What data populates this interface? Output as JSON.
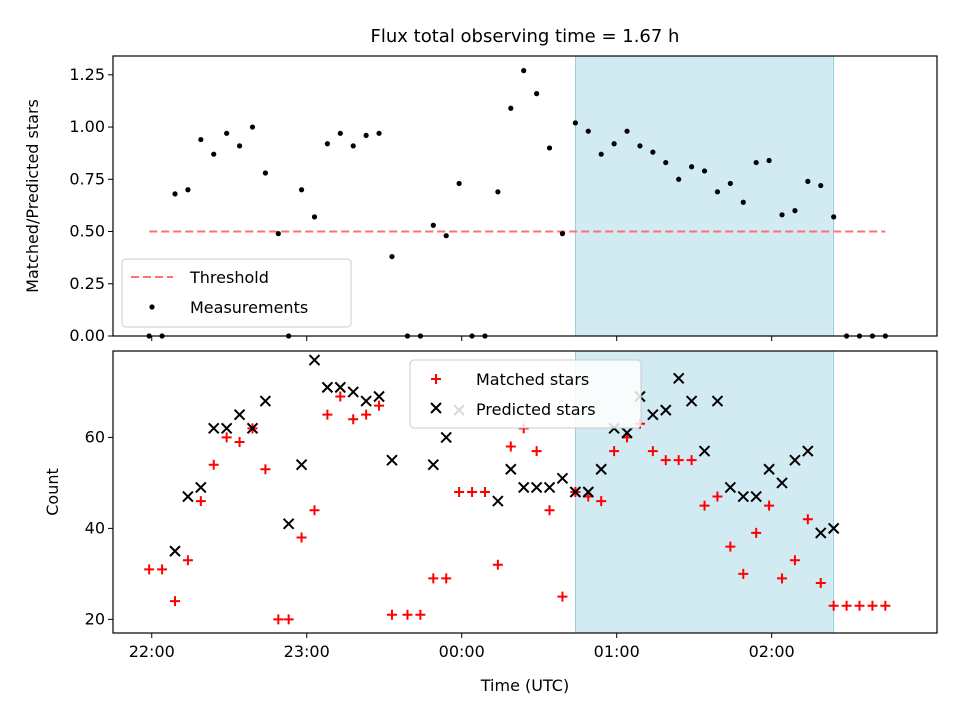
{
  "title": "Flux total observing time = 1.67 h",
  "colors": {
    "window": "#add8e6",
    "threshold": "#ff7070",
    "measurements": "#000000",
    "matched": "#ff0000",
    "predicted": "#000000"
  },
  "chart_data": [
    {
      "type": "scatter",
      "ylabel": "Matched/Predicted stars",
      "ylim": [
        0,
        1.34
      ],
      "yticks": [
        0,
        0.25,
        0.5,
        0.75,
        1.0,
        1.25
      ],
      "ytick_labels": [
        "0.00",
        "0.25",
        "0.50",
        "0.75",
        "1.00",
        "1.25"
      ],
      "xlim": [
        "21:45",
        "03:04"
      ],
      "xticks": [
        "22:00",
        "23:00",
        "00:00",
        "01:00",
        "02:00"
      ],
      "highlight": {
        "start": "00:44",
        "end": "02:24"
      },
      "legend": {
        "placement": "lower-left",
        "entries": [
          "Threshold",
          "Measurements"
        ]
      },
      "series": [
        {
          "name": "Threshold",
          "style": "dashed-line",
          "x": [
            "21:59",
            "02:44"
          ],
          "y": [
            0.5,
            0.5
          ]
        },
        {
          "name": "Measurements",
          "style": "dot",
          "x": [
            "21:59",
            "22:04",
            "22:09",
            "22:14",
            "22:19",
            "22:24",
            "22:29",
            "22:34",
            "22:39",
            "22:44",
            "22:49",
            "22:53",
            "22:58",
            "23:03",
            "23:08",
            "23:13",
            "23:18",
            "23:23",
            "23:28",
            "23:33",
            "23:39",
            "23:44",
            "23:49",
            "23:54",
            "23:59",
            "00:04",
            "00:09",
            "00:14",
            "00:19",
            "00:24",
            "00:29",
            "00:34",
            "00:39",
            "00:44",
            "00:49",
            "00:54",
            "00:59",
            "01:04",
            "01:09",
            "01:14",
            "01:19",
            "01:24",
            "01:29",
            "01:34",
            "01:39",
            "01:44",
            "01:49",
            "01:54",
            "01:59",
            "02:04",
            "02:09",
            "02:14",
            "02:19",
            "02:24",
            "02:29",
            "02:34",
            "02:39",
            "02:44"
          ],
          "y": [
            0.0,
            0.0,
            0.68,
            0.7,
            0.94,
            0.87,
            0.97,
            0.91,
            1.0,
            0.78,
            0.49,
            0.0,
            0.7,
            0.57,
            0.92,
            0.97,
            0.91,
            0.96,
            0.97,
            0.38,
            0.0,
            0.0,
            0.53,
            0.48,
            0.73,
            0.0,
            0.0,
            0.69,
            1.09,
            1.27,
            1.16,
            0.9,
            0.49,
            1.02,
            0.98,
            0.87,
            0.92,
            0.98,
            0.91,
            0.88,
            0.83,
            0.75,
            0.81,
            0.79,
            0.69,
            0.73,
            0.64,
            0.83,
            0.84,
            0.58,
            0.6,
            0.74,
            0.72,
            0.57,
            0.0,
            0.0,
            0.0,
            0.0
          ]
        }
      ]
    },
    {
      "type": "scatter",
      "xlabel": "Time (UTC)",
      "ylabel": "Count",
      "ylim": [
        17,
        79
      ],
      "yticks": [
        20,
        40,
        60
      ],
      "ytick_labels": [
        "20",
        "40",
        "60"
      ],
      "xlim": [
        "21:45",
        "03:04"
      ],
      "xticks": [
        "22:00",
        "23:00",
        "00:00",
        "01:00",
        "02:00"
      ],
      "xtick_labels": [
        "22:00",
        "23:00",
        "00:00",
        "01:00",
        "02:00"
      ],
      "highlight": {
        "start": "00:44",
        "end": "02:24"
      },
      "legend": {
        "placement": "upper-center",
        "entries": [
          "Matched stars",
          "Predicted stars"
        ]
      },
      "series": [
        {
          "name": "Matched stars",
          "marker": "plus",
          "x": [
            "21:59",
            "22:04",
            "22:09",
            "22:14",
            "22:19",
            "22:24",
            "22:29",
            "22:34",
            "22:39",
            "22:44",
            "22:49",
            "22:53",
            "22:58",
            "23:03",
            "23:08",
            "23:13",
            "23:18",
            "23:23",
            "23:28",
            "23:33",
            "23:39",
            "23:44",
            "23:49",
            "23:54",
            "23:59",
            "00:04",
            "00:09",
            "00:14",
            "00:19",
            "00:24",
            "00:29",
            "00:34",
            "00:39",
            "00:44",
            "00:49",
            "00:54",
            "00:59",
            "01:04",
            "01:09",
            "01:14",
            "01:19",
            "01:24",
            "01:29",
            "01:34",
            "01:39",
            "01:44",
            "01:49",
            "01:54",
            "01:59",
            "02:04",
            "02:09",
            "02:14",
            "02:19",
            "02:24",
            "02:29",
            "02:34",
            "02:39",
            "02:44"
          ],
          "y": [
            31,
            31,
            24,
            33,
            46,
            54,
            60,
            59,
            62,
            53,
            20,
            20,
            38,
            44,
            65,
            69,
            64,
            65,
            67,
            21,
            21,
            21,
            29,
            29,
            48,
            48,
            48,
            32,
            58,
            62,
            57,
            44,
            25,
            48,
            47,
            46,
            57,
            60,
            63,
            57,
            55,
            55,
            55,
            45,
            47,
            36,
            30,
            39,
            45,
            29,
            33,
            42,
            28,
            23,
            23,
            23,
            23,
            23
          ]
        },
        {
          "name": "Predicted stars",
          "marker": "x",
          "x": [
            "22:09",
            "22:14",
            "22:19",
            "22:24",
            "22:29",
            "22:34",
            "22:39",
            "22:44",
            "22:53",
            "22:58",
            "23:03",
            "23:08",
            "23:13",
            "23:18",
            "23:23",
            "23:28",
            "23:33",
            "23:49",
            "23:54",
            "23:59",
            "00:14",
            "00:19",
            "00:24",
            "00:29",
            "00:34",
            "00:39",
            "00:44",
            "00:49",
            "00:54",
            "00:59",
            "01:04",
            "01:09",
            "01:14",
            "01:19",
            "01:24",
            "01:29",
            "01:34",
            "01:39",
            "01:44",
            "01:49",
            "01:54",
            "01:59",
            "02:04",
            "02:09",
            "02:14",
            "02:19",
            "02:24"
          ],
          "y": [
            35,
            47,
            49,
            62,
            62,
            65,
            62,
            68,
            41,
            54,
            77,
            71,
            71,
            70,
            68,
            69,
            55,
            54,
            60,
            66,
            46,
            53,
            49,
            49,
            49,
            51,
            48,
            48,
            53,
            62,
            61,
            69,
            65,
            66,
            73,
            68,
            57,
            68,
            49,
            47,
            47,
            53,
            50,
            55,
            57,
            39,
            40
          ]
        }
      ]
    }
  ]
}
